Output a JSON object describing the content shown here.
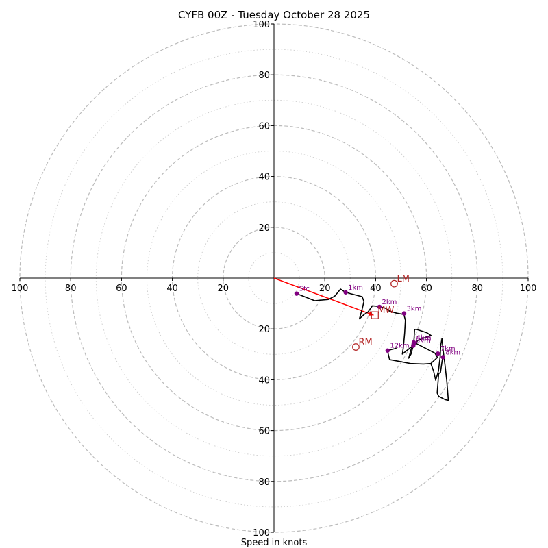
{
  "chart_data": {
    "type": "hodograph",
    "title": "CYFB 00Z - Tuesday October 28 2025",
    "xlabel": "Speed in knots",
    "range": [
      -100,
      100
    ],
    "ring_solid_step": 20,
    "ring_dotted_step": 10,
    "tick_values": [
      20,
      40,
      60,
      80,
      100
    ],
    "x_tick_labels": [
      "100",
      "80",
      "60",
      "40",
      "20",
      "20",
      "40",
      "60",
      "80",
      "100"
    ],
    "y_tick_labels": [
      "100",
      "80",
      "60",
      "40",
      "20",
      "20",
      "40",
      "60",
      "80",
      "100"
    ],
    "colors": {
      "hodograph": "#000000",
      "height_marker": "#800080",
      "shear_vector": "#ff0000",
      "storm_motion": "#b22222",
      "grid": "#bbbbbb"
    },
    "hodograph_trace": [
      [
        8.9,
        -6.1
      ],
      [
        16,
        -8.9
      ],
      [
        21.4,
        -8.4
      ],
      [
        23.9,
        -7.1
      ],
      [
        26.2,
        -4.3
      ],
      [
        27.8,
        -5.4
      ],
      [
        30,
        -6.1
      ],
      [
        34.7,
        -7.3
      ],
      [
        35.4,
        -9.2
      ],
      [
        34.7,
        -12.2
      ],
      [
        33.6,
        -16
      ],
      [
        35.4,
        -14.4
      ],
      [
        37,
        -13.3
      ],
      [
        38.7,
        -10.9
      ],
      [
        41.1,
        -11.1
      ],
      [
        43.8,
        -11.8
      ],
      [
        45.5,
        -13
      ],
      [
        48.2,
        -13.8
      ],
      [
        51.1,
        -14.3
      ],
      [
        51.7,
        -16.6
      ],
      [
        51.4,
        -21.7
      ],
      [
        50.9,
        -27.3
      ],
      [
        50.5,
        -29.9
      ],
      [
        54.6,
        -26.6
      ],
      [
        53.9,
        -28.1
      ],
      [
        53,
        -31.5
      ],
      [
        53.9,
        -29.9
      ],
      [
        54.9,
        -26.2
      ],
      [
        56.8,
        -24.4
      ],
      [
        59.2,
        -23.5
      ],
      [
        61.8,
        -22.6
      ],
      [
        60.2,
        -21.5
      ],
      [
        55.9,
        -20.1
      ],
      [
        55.3,
        -20.3
      ],
      [
        55.1,
        -24.4
      ],
      [
        55.5,
        -25.5
      ],
      [
        63.3,
        -29.5
      ],
      [
        64.3,
        -31.2
      ],
      [
        61.7,
        -33.6
      ],
      [
        58.8,
        -33.8
      ],
      [
        53.7,
        -33.6
      ],
      [
        48.9,
        -32.7
      ],
      [
        45.5,
        -32.1
      ],
      [
        44.6,
        -28.5
      ],
      [
        48.2,
        -27.6
      ]
    ],
    "hodograph_trace_tail": [
      [
        61.7,
        -33.6
      ],
      [
        62.8,
        -36.6
      ],
      [
        63.6,
        -40.2
      ],
      [
        64.7,
        -36.6
      ],
      [
        65.4,
        -30.8
      ],
      [
        65.6,
        -26.4
      ],
      [
        66.1,
        -23.8
      ],
      [
        66.5,
        -28
      ],
      [
        67.3,
        -34.4
      ],
      [
        68,
        -40.7
      ],
      [
        68.6,
        -48.1
      ],
      [
        67.3,
        -47.8
      ],
      [
        64.8,
        -46.5
      ],
      [
        64.2,
        -45.2
      ],
      [
        64.8,
        -37.6
      ],
      [
        65.5,
        -37.1
      ],
      [
        66.4,
        -31
      ]
    ],
    "height_markers": [
      {
        "label": "Sfc",
        "u": 8.9,
        "v": -6.1
      },
      {
        "label": "1km",
        "u": 28.2,
        "v": -5.6
      },
      {
        "label": "2km",
        "u": 41.5,
        "v": -11.3
      },
      {
        "label": "3km",
        "u": 51.2,
        "v": -13.9
      },
      {
        "label": "4km",
        "u": 55,
        "v": -25.3
      },
      {
        "label": "5km",
        "u": 55,
        "v": -25.8
      },
      {
        "label": "6km",
        "u": 54.8,
        "v": -26.6
      },
      {
        "label": "7km",
        "u": 64.5,
        "v": -29.7
      },
      {
        "label": "8km",
        "u": 66.5,
        "v": -31.1
      },
      {
        "label": "12km",
        "u": 44.7,
        "v": -28.5
      }
    ],
    "shear_vector": {
      "from": [
        0,
        0
      ],
      "to": [
        39.2,
        -14.6
      ]
    },
    "storm_motion": [
      {
        "label": "LM",
        "u": 47.3,
        "v": -2.2,
        "shape": "circle"
      },
      {
        "label": "MW",
        "u": 39.7,
        "v": -14.6,
        "shape": "square"
      },
      {
        "label": "RM",
        "u": 32.2,
        "v": -27.1,
        "shape": "circle"
      }
    ]
  }
}
